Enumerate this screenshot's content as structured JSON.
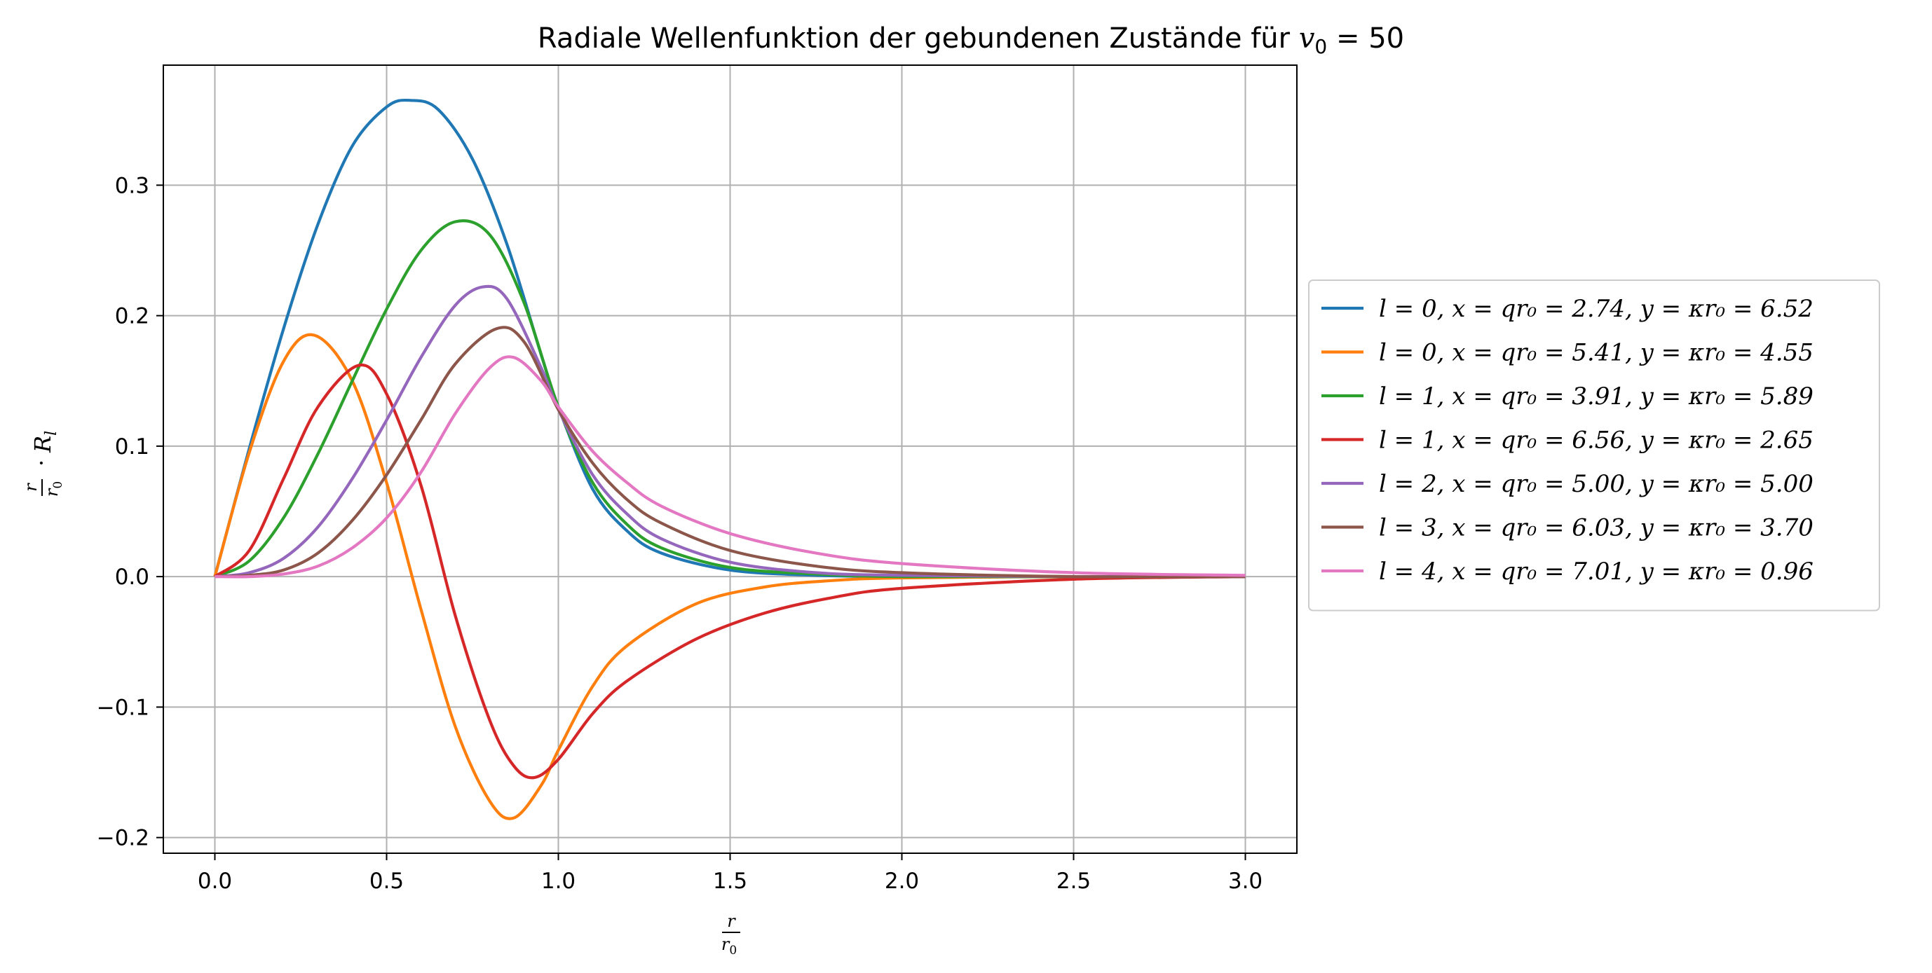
{
  "chart_data": {
    "type": "line",
    "title": "Radiale Wellenfunktion der gebundenen Zustände für v₀ = 50",
    "xlabel": "r / r₀",
    "ylabel": "(r / r₀) · Rₗ",
    "xlim": [
      -0.15,
      3.15
    ],
    "ylim": [
      -0.212,
      0.392
    ],
    "xticks": [
      "0.0",
      "0.5",
      "1.0",
      "1.5",
      "2.0",
      "2.5",
      "3.0"
    ],
    "yticks": [
      "−0.2",
      "−0.1",
      "0.0",
      "0.1",
      "0.2",
      "0.3"
    ],
    "grid": true,
    "legend_position": "outside-right",
    "series": [
      {
        "name": "l = 0, x = qr₀ = 2.74, y = κr₀ = 6.52",
        "l": 0,
        "x_param": 2.74,
        "y_param": 6.52,
        "color": "#1f77b4",
        "x": [
          0.0,
          0.1,
          0.2,
          0.3,
          0.4,
          0.5,
          0.57,
          0.65,
          0.75,
          0.85,
          0.95,
          1.0,
          1.1,
          1.2,
          1.3,
          1.5,
          1.75,
          2.0,
          2.5,
          3.0
        ],
        "y": [
          0.0,
          0.098,
          0.19,
          0.27,
          0.33,
          0.36,
          0.365,
          0.358,
          0.32,
          0.255,
          0.17,
          0.13,
          0.067,
          0.035,
          0.018,
          0.005,
          0.001,
          0.0,
          0.0,
          0.0
        ]
      },
      {
        "name": "l = 0, x = qr₀ = 5.41, y = κr₀ = 4.55",
        "l": 0,
        "x_param": 5.41,
        "y_param": 4.55,
        "color": "#ff7f0e",
        "x": [
          0.0,
          0.1,
          0.2,
          0.29,
          0.4,
          0.5,
          0.6,
          0.7,
          0.8,
          0.87,
          0.95,
          1.0,
          1.1,
          1.2,
          1.4,
          1.6,
          1.8,
          2.0,
          2.5,
          3.0
        ],
        "y": [
          0.0,
          0.095,
          0.165,
          0.185,
          0.15,
          0.072,
          -0.025,
          -0.115,
          -0.172,
          -0.185,
          -0.16,
          -0.133,
          -0.084,
          -0.053,
          -0.021,
          -0.008,
          -0.003,
          -0.001,
          0.0,
          0.0
        ]
      },
      {
        "name": "l = 1, x = qr₀ = 3.91, y = κr₀ = 5.89",
        "l": 1,
        "x_param": 3.91,
        "y_param": 5.89,
        "color": "#2ca02c",
        "x": [
          0.0,
          0.1,
          0.2,
          0.3,
          0.4,
          0.5,
          0.6,
          0.7,
          0.8,
          0.9,
          1.0,
          1.1,
          1.2,
          1.3,
          1.5,
          1.75,
          2.0,
          2.5,
          3.0
        ],
        "y": [
          0.0,
          0.012,
          0.045,
          0.094,
          0.15,
          0.205,
          0.25,
          0.272,
          0.262,
          0.21,
          0.13,
          0.072,
          0.04,
          0.022,
          0.007,
          0.002,
          0.0,
          0.0,
          0.0
        ]
      },
      {
        "name": "l = 1, x = qr₀ = 6.56, y = κr₀ = 2.65",
        "l": 1,
        "x_param": 6.56,
        "y_param": 2.65,
        "color": "#d62728",
        "x": [
          0.0,
          0.1,
          0.2,
          0.3,
          0.42,
          0.5,
          0.6,
          0.7,
          0.8,
          0.87,
          0.93,
          1.0,
          1.1,
          1.2,
          1.4,
          1.6,
          1.8,
          2.0,
          2.5,
          3.0
        ],
        "y": [
          0.0,
          0.02,
          0.075,
          0.13,
          0.162,
          0.14,
          0.07,
          -0.03,
          -0.11,
          -0.145,
          -0.154,
          -0.14,
          -0.105,
          -0.08,
          -0.048,
          -0.028,
          -0.016,
          -0.009,
          -0.002,
          0.0
        ]
      },
      {
        "name": "l = 2, x = qr₀ = 5.00, y = κr₀ = 5.00",
        "l": 2,
        "x_param": 5.0,
        "y_param": 5.0,
        "color": "#9467bd",
        "x": [
          0.0,
          0.1,
          0.2,
          0.3,
          0.4,
          0.5,
          0.6,
          0.7,
          0.78,
          0.85,
          0.95,
          1.0,
          1.1,
          1.2,
          1.3,
          1.5,
          1.75,
          2.0,
          2.5,
          3.0
        ],
        "y": [
          0.0,
          0.003,
          0.014,
          0.038,
          0.075,
          0.12,
          0.168,
          0.208,
          0.222,
          0.213,
          0.16,
          0.128,
          0.078,
          0.048,
          0.029,
          0.011,
          0.003,
          0.001,
          0.0,
          0.0
        ]
      },
      {
        "name": "l = 3, x = qr₀ = 6.03, y = κr₀ = 3.70",
        "l": 3,
        "x_param": 6.03,
        "y_param": 3.7,
        "color": "#8c564b",
        "x": [
          0.0,
          0.1,
          0.2,
          0.3,
          0.4,
          0.5,
          0.6,
          0.7,
          0.82,
          0.9,
          1.0,
          1.1,
          1.2,
          1.3,
          1.5,
          1.75,
          2.0,
          2.5,
          3.0
        ],
        "y": [
          0.0,
          0.001,
          0.005,
          0.018,
          0.043,
          0.078,
          0.12,
          0.163,
          0.19,
          0.18,
          0.128,
          0.087,
          0.059,
          0.041,
          0.02,
          0.008,
          0.003,
          0.0,
          0.0
        ]
      },
      {
        "name": "l = 4, x = qr₀ = 7.01, y = κr₀ = 0.96",
        "l": 4,
        "x_param": 7.01,
        "y_param": 0.96,
        "color": "#e377c2",
        "x": [
          0.0,
          0.1,
          0.2,
          0.3,
          0.4,
          0.5,
          0.6,
          0.7,
          0.8,
          0.87,
          0.95,
          1.0,
          1.1,
          1.2,
          1.3,
          1.5,
          1.75,
          2.0,
          2.5,
          3.0
        ],
        "y": [
          0.0,
          0.0,
          0.002,
          0.008,
          0.022,
          0.045,
          0.08,
          0.125,
          0.16,
          0.168,
          0.15,
          0.13,
          0.096,
          0.072,
          0.054,
          0.033,
          0.018,
          0.01,
          0.003,
          0.001
        ]
      }
    ]
  }
}
